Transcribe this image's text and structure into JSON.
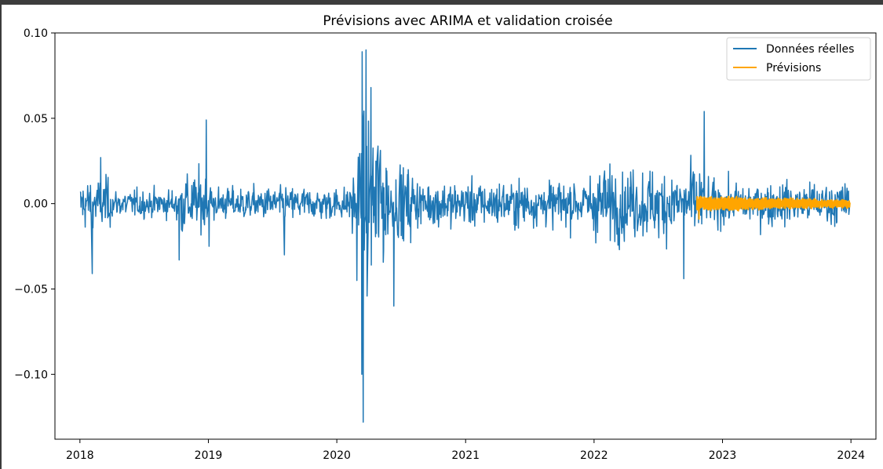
{
  "chart_data": {
    "type": "line",
    "title": "Prévisions avec ARIMA et validation croisée",
    "xlabel": "",
    "ylabel": "",
    "x_ticks": [
      "2018",
      "2019",
      "2020",
      "2021",
      "2022",
      "2023",
      "2024"
    ],
    "y_ticks": [
      "0.10",
      "0.05",
      "0.00",
      "−0.05",
      "−0.10"
    ],
    "xlim": [
      "2017-10-22",
      "2024-03-12"
    ],
    "ylim": [
      -0.138,
      0.1
    ],
    "grid": false,
    "legend_position": "top-right",
    "series": [
      {
        "name": "Données réelles",
        "color": "#1f77b4",
        "start": "2018-01-02",
        "end": "2023-12-29",
        "description_points": [
          [
            "2018-01-02",
            0.007
          ],
          [
            "2018-02-05",
            -0.041
          ],
          [
            "2018-03-01",
            0.027
          ],
          [
            "2018-10-10",
            -0.033
          ],
          [
            "2018-12-26",
            0.049
          ],
          [
            "2019-01-03",
            -0.025
          ],
          [
            "2019-08-05",
            -0.03
          ],
          [
            "2020-02-27",
            -0.045
          ],
          [
            "2020-03-12",
            -0.1
          ],
          [
            "2020-03-13",
            0.089
          ],
          [
            "2020-03-16",
            -0.128
          ],
          [
            "2020-03-24",
            0.09
          ],
          [
            "2020-04-07",
            0.068
          ],
          [
            "2020-06-11",
            -0.06
          ],
          [
            "2022-09-13",
            -0.044
          ],
          [
            "2022-11-10",
            0.054
          ],
          [
            "2023-12-29",
            -0.002
          ]
        ]
      },
      {
        "name": "Prévisions",
        "color": "#ffa500",
        "start": "2022-10-20",
        "end": "2023-12-29"
      }
    ]
  }
}
